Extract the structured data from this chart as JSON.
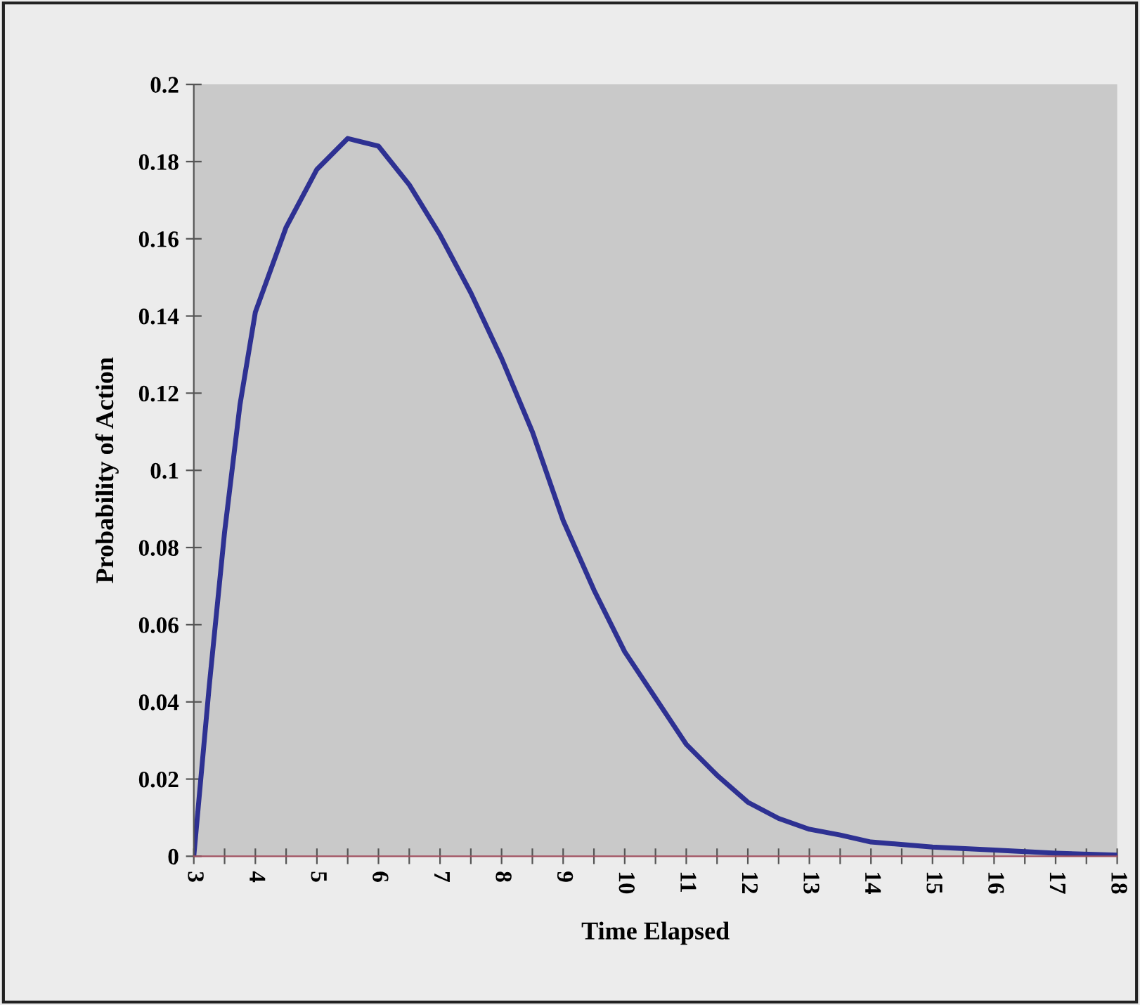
{
  "chart_data": {
    "type": "line",
    "xlabel": "Time Elapsed",
    "ylabel": "Probability of Action",
    "x": [
      3,
      3.25,
      3.5,
      3.75,
      4,
      4.5,
      5,
      5.5,
      6,
      6.5,
      7,
      7.5,
      8,
      8.5,
      9,
      9.5,
      10,
      10.5,
      11,
      11.5,
      12,
      12.5,
      13,
      13.5,
      14,
      15,
      16,
      17,
      18
    ],
    "series": [
      {
        "color": "#2e3192",
        "values": [
          0,
          0.044,
          0.084,
          0.117,
          0.141,
          0.163,
          0.178,
          0.186,
          0.184,
          0.174,
          0.161,
          0.146,
          0.129,
          0.11,
          0.087,
          0.069,
          0.053,
          0.041,
          0.029,
          0.021,
          0.014,
          0.0098,
          0.007,
          0.0055,
          0.0037,
          0.0024,
          0.0016,
          0.0008,
          0.0003
        ]
      }
    ],
    "xlim": [
      3,
      18
    ],
    "xticks": [
      3,
      {
        "value": 3.5,
        "label": null
      },
      4,
      {
        "value": 4.5,
        "label": null
      },
      5,
      {
        "value": 5.5,
        "label": null
      },
      6,
      {
        "value": 6.5,
        "label": null
      },
      7,
      {
        "value": 7.5,
        "label": null
      },
      8,
      {
        "value": 8.5,
        "label": null
      },
      9,
      {
        "value": 9.5,
        "label": null
      },
      10,
      {
        "value": 10.5,
        "label": null
      },
      11,
      {
        "value": 11.5,
        "label": null
      },
      12,
      {
        "value": 12.5,
        "label": null
      },
      13,
      {
        "value": 13.5,
        "label": null
      },
      14,
      {
        "value": 14.5,
        "label": null
      },
      15,
      {
        "value": 15.5,
        "label": null
      },
      16,
      {
        "value": 16.5,
        "label": null
      },
      17,
      {
        "value": 17.5,
        "label": null
      },
      18
    ],
    "ylim": [
      0,
      0.2
    ],
    "yticks": [
      0,
      0.02,
      0.04,
      0.06,
      0.08,
      0.1,
      0.12,
      0.14,
      0.16,
      0.18,
      0.2
    ],
    "grid": false,
    "legend": false,
    "marker": "none",
    "line_style": "solid"
  }
}
